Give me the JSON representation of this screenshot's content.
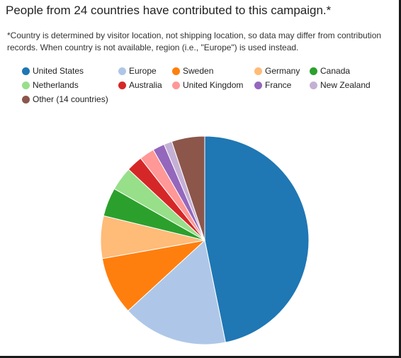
{
  "header": {
    "title": "People from 24 countries have contributed to this campaign.*",
    "note": "*Country is determined by visitor location, not shipping location, so data may differ from contribution records. When country is not available, region (i.e., \"Europe\") is used instead."
  },
  "chart_data": {
    "type": "pie",
    "start_angle_deg": 0,
    "direction": "clockwise",
    "legend_position": "top",
    "slices": [
      {
        "label": "United States",
        "value": 48.3,
        "color": "#1f77b4"
      },
      {
        "label": "Europe",
        "value": 16.9,
        "color": "#aec7e8"
      },
      {
        "label": "Sweden",
        "value": 9.3,
        "color": "#ff7f0e"
      },
      {
        "label": "Germany",
        "value": 6.8,
        "color": "#ffbb78"
      },
      {
        "label": "Canada",
        "value": 4.6,
        "color": "#2ca02c"
      },
      {
        "label": "Netherlands",
        "value": 3.8,
        "color": "#98df8a"
      },
      {
        "label": "Australia",
        "value": 2.6,
        "color": "#d62728"
      },
      {
        "label": "United Kingdom",
        "value": 2.4,
        "color": "#ff9896"
      },
      {
        "label": "France",
        "value": 1.9,
        "color": "#9467bd"
      },
      {
        "label": "New Zealand",
        "value": 1.3,
        "color": "#c5b0d5"
      },
      {
        "label": "Other (14 countries)",
        "value": 5.3,
        "color": "#8c564b"
      }
    ]
  }
}
